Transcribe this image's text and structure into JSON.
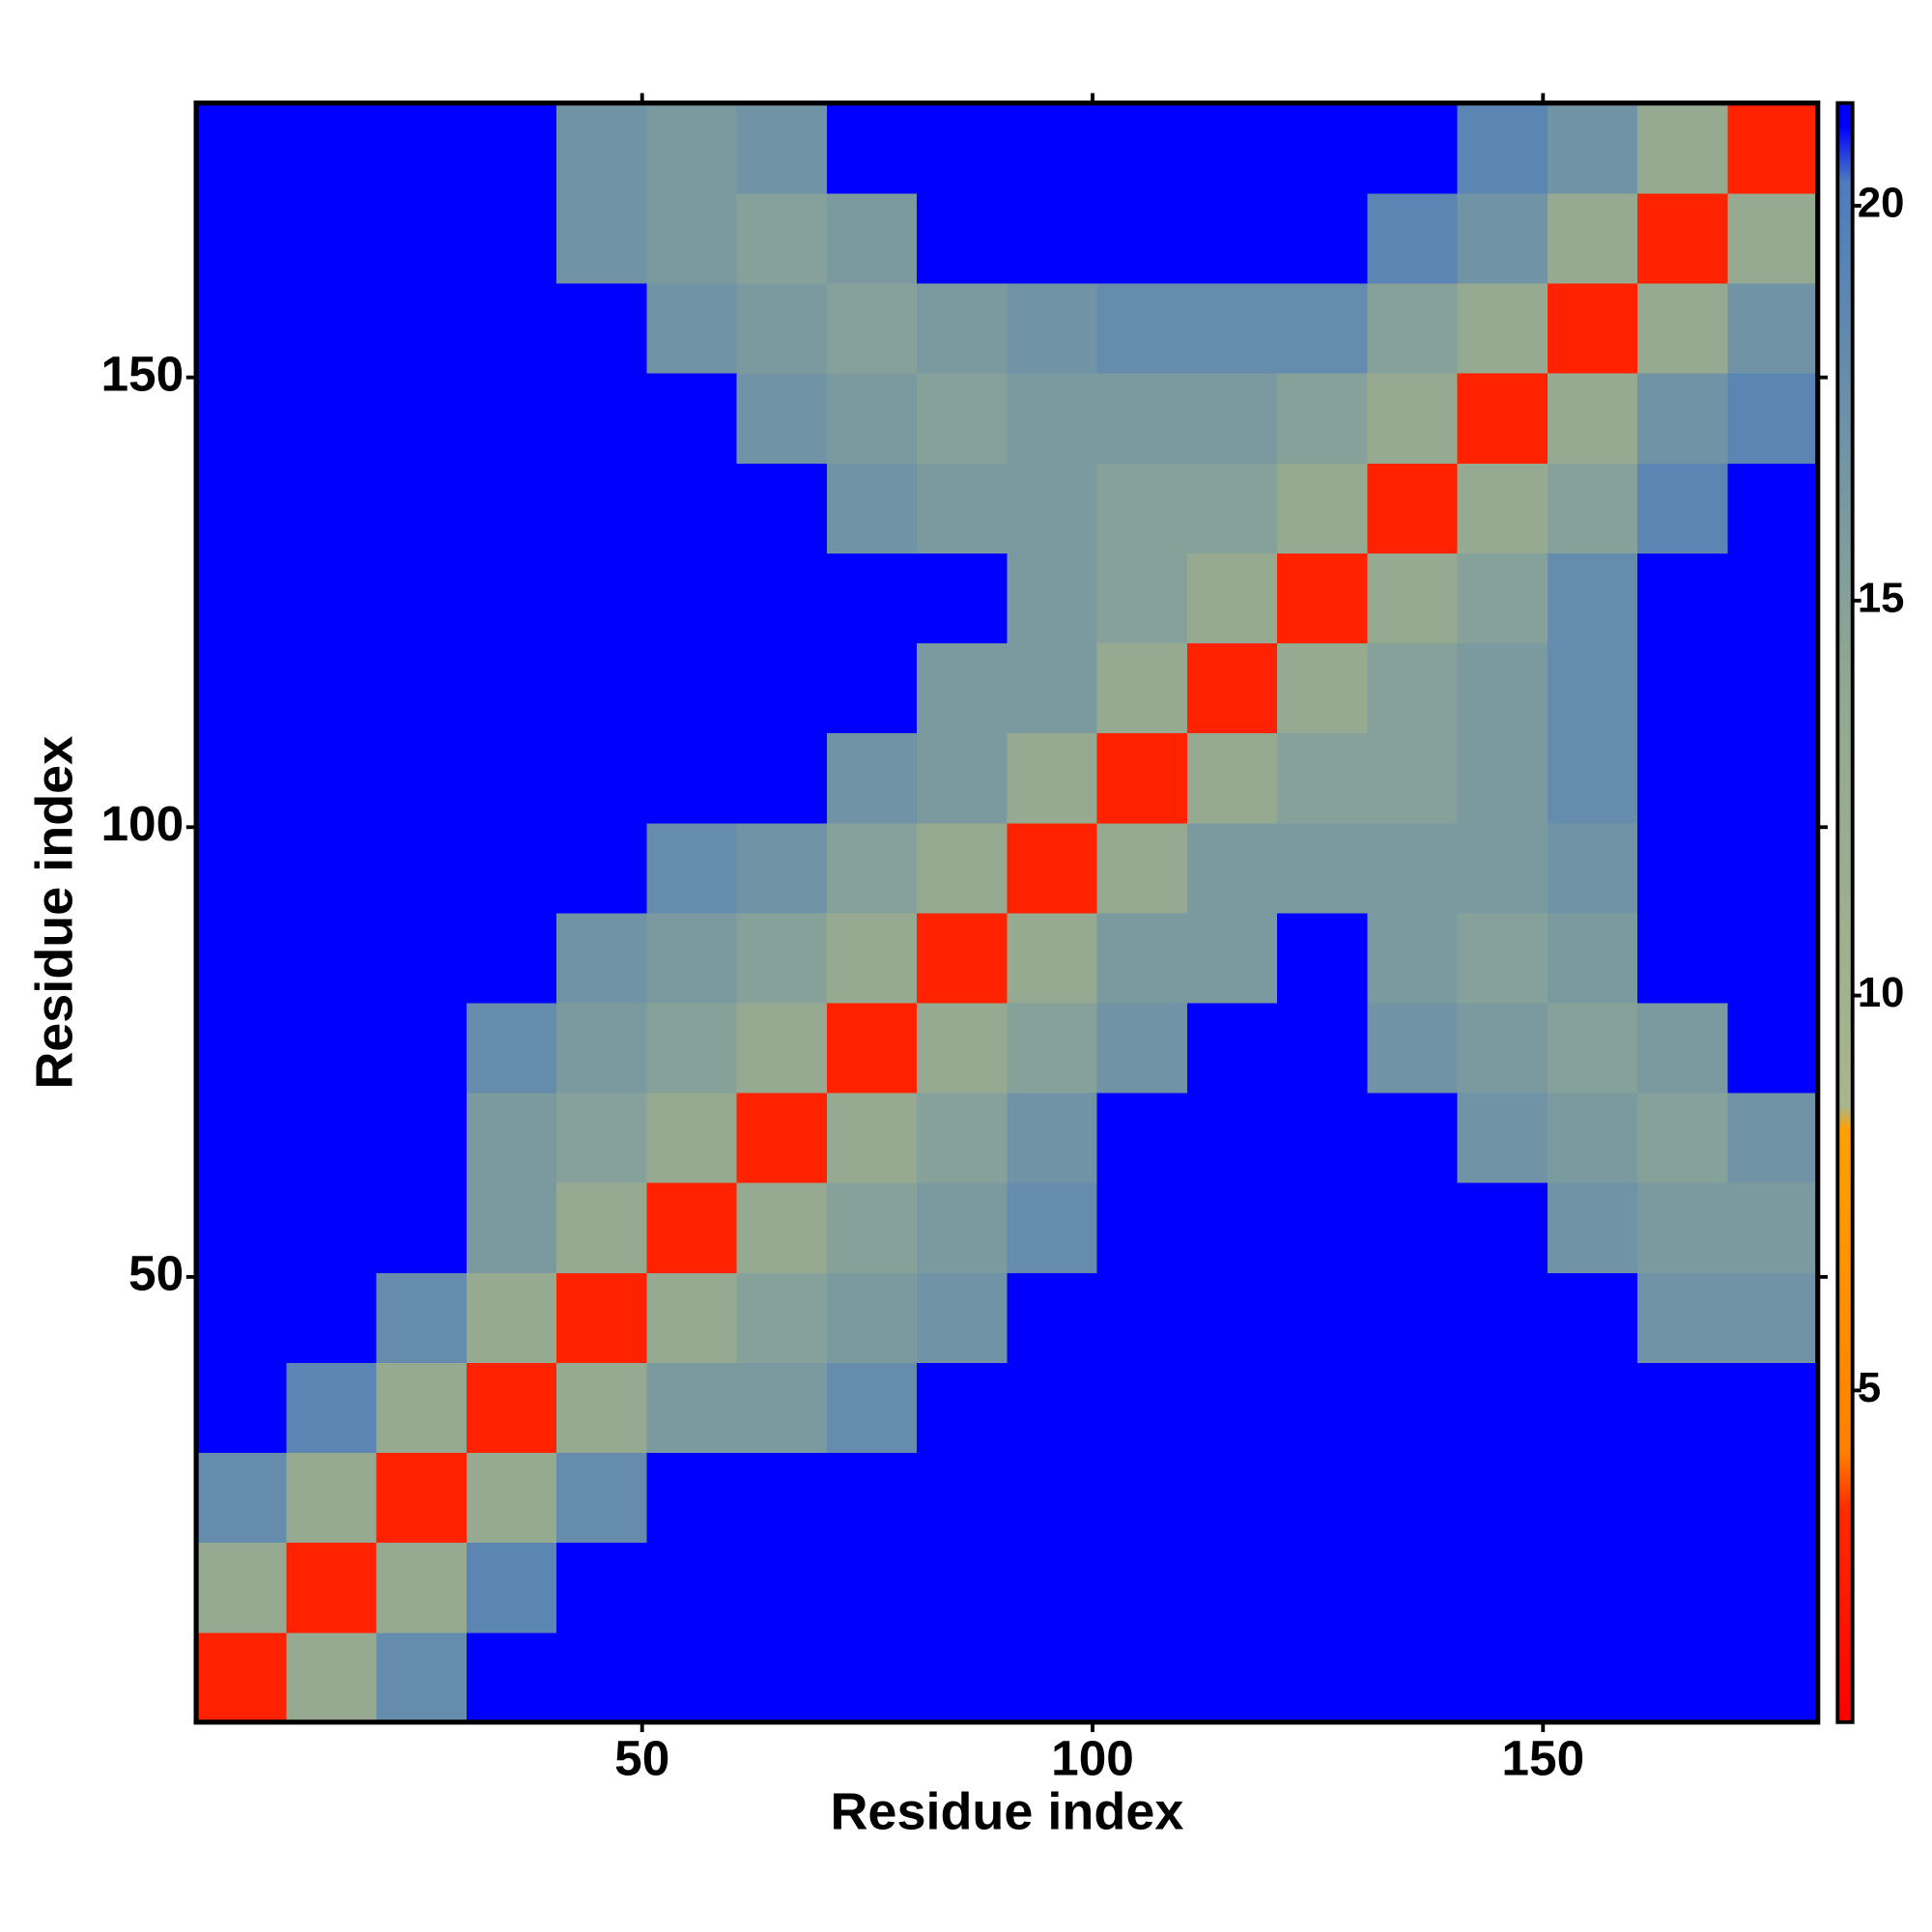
{
  "chart_data": {
    "type": "heatmap",
    "xlabel": "Residue index",
    "ylabel": "Residue index",
    "x_edges": [
      0.5,
      10.5,
      20.5,
      30.5,
      40.5,
      50.5,
      60.5,
      70.5,
      80.5,
      90.5,
      100.5,
      110.5,
      120.5,
      130.5,
      140.5,
      150.5,
      160.5,
      170.5,
      180.5
    ],
    "y_edges": [
      0.5,
      10.5,
      20.5,
      30.5,
      40.5,
      50.5,
      60.5,
      70.5,
      80.5,
      90.5,
      100.5,
      110.5,
      120.5,
      130.5,
      140.5,
      150.5,
      160.5,
      170.5,
      180.5
    ],
    "z": [
      [
        3,
        13,
        18,
        21.3,
        21.3,
        21.3,
        21.3,
        21.3,
        21.3,
        21.3,
        21.3,
        21.3,
        21.3,
        21.3,
        21.3,
        21.3,
        21.3,
        21.3
      ],
      [
        13,
        3,
        13,
        19,
        21.3,
        21.3,
        21.3,
        21.3,
        21.3,
        21.3,
        21.3,
        21.3,
        21.3,
        21.3,
        21.3,
        21.3,
        21.3,
        21.3
      ],
      [
        18,
        13,
        3,
        13,
        18,
        21.3,
        21.3,
        21.3,
        21.3,
        21.3,
        21.3,
        21.3,
        21.3,
        21.3,
        21.3,
        21.3,
        21.3,
        21.3
      ],
      [
        21.3,
        19,
        13,
        3,
        13,
        16,
        16,
        18,
        21.3,
        21.3,
        21.3,
        21.3,
        21.3,
        21.3,
        21.3,
        21.3,
        21.3,
        21.3
      ],
      [
        21.3,
        21.3,
        18,
        13,
        3,
        13,
        15,
        16,
        17,
        21.3,
        21.3,
        21.3,
        21.3,
        21.3,
        21.3,
        21.3,
        17,
        17
      ],
      [
        21.3,
        21.3,
        21.3,
        16,
        13,
        3,
        13,
        15,
        16,
        18,
        21.3,
        21.3,
        21.3,
        21.3,
        21.3,
        17,
        16,
        16
      ],
      [
        21.3,
        21.3,
        21.3,
        16,
        15,
        13,
        3,
        13,
        15,
        17,
        21.3,
        21.3,
        21.3,
        21.3,
        17,
        16,
        15,
        17
      ],
      [
        21.3,
        21.3,
        21.3,
        18,
        16,
        15,
        13,
        3,
        13,
        15,
        17,
        21.3,
        21.3,
        17,
        16,
        15,
        16,
        21.3
      ],
      [
        21.3,
        21.3,
        21.3,
        21.3,
        17,
        16,
        15,
        13,
        3,
        13,
        16,
        16,
        21.3,
        16,
        15,
        16,
        21.3,
        21.3
      ],
      [
        21.3,
        21.3,
        21.3,
        21.3,
        21.3,
        18,
        17,
        15,
        13,
        3,
        13,
        16,
        16,
        16,
        16,
        17,
        21.3,
        21.3
      ],
      [
        21.3,
        21.3,
        21.3,
        21.3,
        21.3,
        21.3,
        21.3,
        17,
        16,
        13,
        3,
        13,
        15,
        15,
        16,
        18,
        21.3,
        21.3
      ],
      [
        21.3,
        21.3,
        21.3,
        21.3,
        21.3,
        21.3,
        21.3,
        21.3,
        16,
        16,
        13,
        3,
        13,
        15,
        16,
        18,
        21.3,
        21.3
      ],
      [
        21.3,
        21.3,
        21.3,
        21.3,
        21.3,
        21.3,
        21.3,
        21.3,
        21.3,
        16,
        15,
        13,
        3,
        13,
        15,
        18,
        21.3,
        21.3
      ],
      [
        21.3,
        21.3,
        21.3,
        21.3,
        21.3,
        21.3,
        21.3,
        17,
        16,
        16,
        15,
        15,
        13,
        3,
        13,
        15,
        19,
        21.3
      ],
      [
        21.3,
        21.3,
        21.3,
        21.3,
        21.3,
        21.3,
        17,
        16,
        15,
        16,
        16,
        16,
        15,
        13,
        3,
        13,
        17,
        19
      ],
      [
        21.3,
        21.3,
        21.3,
        21.3,
        21.3,
        17,
        16,
        15,
        16,
        17,
        18,
        18,
        18,
        15,
        13,
        3,
        13,
        17
      ],
      [
        21.3,
        21.3,
        21.3,
        21.3,
        17,
        16,
        15,
        16,
        21.3,
        21.3,
        21.3,
        21.3,
        21.3,
        19,
        17,
        13,
        3,
        13
      ],
      [
        21.3,
        21.3,
        21.3,
        21.3,
        17,
        16,
        17,
        21.3,
        21.3,
        21.3,
        21.3,
        21.3,
        21.3,
        21.3,
        19,
        17,
        13,
        3
      ]
    ],
    "xlim": [
      0.5,
      180.5
    ],
    "ylim": [
      0.5,
      180.5
    ],
    "xticks": [
      50,
      100,
      150
    ],
    "yticks": [
      50,
      100,
      150
    ],
    "zlim": [
      0.8,
      21.3
    ],
    "zticks": [
      5,
      10,
      15,
      20
    ],
    "colorscale": [
      [
        0.8,
        "#ff0000"
      ],
      [
        3.5,
        "#ff2a00"
      ],
      [
        4.2,
        "#ff8000"
      ],
      [
        8.3,
        "#ffa000"
      ],
      [
        8.6,
        "#a9b58c"
      ],
      [
        14,
        "#90a892"
      ],
      [
        20.3,
        "#4d7cbc"
      ],
      [
        21,
        "#0000ff"
      ],
      [
        21.3,
        "#0000ff"
      ]
    ]
  }
}
